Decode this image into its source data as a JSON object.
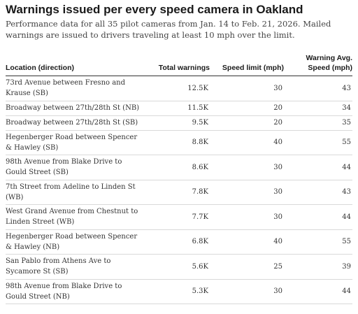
{
  "title": "Warnings issued per every speed camera in Oakland",
  "subtitle": "Performance data for all 35 pilot cameras from Jan. 14 to Feb. 21, 2026. Mailed warnings are issued to drivers traveling at least 10 mph over the limit.",
  "chart_data": {
    "type": "table",
    "title": "Warnings issued per every speed camera in Oakland",
    "columns": [
      "Location (direction)",
      "Total warnings",
      "Speed limit (mph)",
      "Warning Avg. Speed (mph)"
    ],
    "rows": [
      {
        "location": "73rd Avenue between Fresno and Krause (SB)",
        "total_warnings": "12.5K",
        "speed_limit": "30",
        "avg_speed": "43"
      },
      {
        "location": "Broadway between 27th/28th St (NB)",
        "total_warnings": "11.5K",
        "speed_limit": "20",
        "avg_speed": "34"
      },
      {
        "location": "Broadway between 27th/28th St (SB)",
        "total_warnings": "9.5K",
        "speed_limit": "20",
        "avg_speed": "35"
      },
      {
        "location": "Hegenberger Road between Spencer & Hawley (SB)",
        "total_warnings": "8.8K",
        "speed_limit": "40",
        "avg_speed": "55"
      },
      {
        "location": "98th Avenue from Blake Drive to Gould Street (SB)",
        "total_warnings": "8.6K",
        "speed_limit": "30",
        "avg_speed": "44"
      },
      {
        "location": "7th Street from Adeline to Linden St (WB)",
        "total_warnings": "7.8K",
        "speed_limit": "30",
        "avg_speed": "43"
      },
      {
        "location": "West Grand Avenue from Chestnut to Linden Street (WB)",
        "total_warnings": "7.7K",
        "speed_limit": "30",
        "avg_speed": "44"
      },
      {
        "location": "Hegenberger Road between Spencer & Hawley (NB)",
        "total_warnings": "6.8K",
        "speed_limit": "40",
        "avg_speed": "55"
      },
      {
        "location": "San Pablo from Athens Ave to Sycamore St (SB)",
        "total_warnings": "5.6K",
        "speed_limit": "25",
        "avg_speed": "39"
      },
      {
        "location": "98th Avenue from Blake Drive to Gould Street (NB)",
        "total_warnings": "5.3K",
        "speed_limit": "30",
        "avg_speed": "44"
      }
    ]
  }
}
